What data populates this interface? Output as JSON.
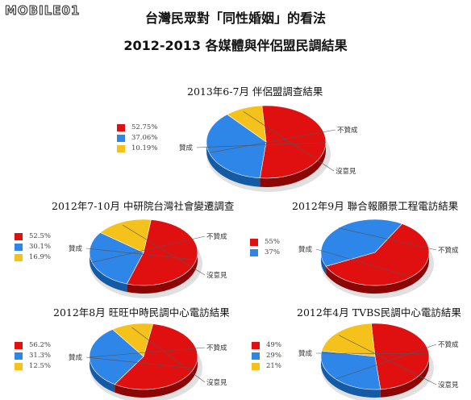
{
  "header": {
    "logo": "MOBILE01",
    "title": "台灣民眾對「同性婚姻」的看法",
    "subtitle": "2012-2013 各媒體與伴侶盟民調結果"
  },
  "colors": {
    "support": "#e01010",
    "oppose": "#2e86e8",
    "no_opinion": "#f5c21b"
  },
  "chart_data": [
    {
      "type": "pie",
      "title": "2013年6-7月 伴侶盟調查結果",
      "slices": [
        {
          "label": "贊成",
          "value": 52.75,
          "legend": "52.75%"
        },
        {
          "label": "不贊成",
          "value": 37.06,
          "legend": "37.06%"
        },
        {
          "label": "沒意見",
          "value": 10.19,
          "legend": "10.19%"
        }
      ],
      "legend_position": "left"
    },
    {
      "type": "pie",
      "title": "2012年7-10月 中研院台灣社會變遷調查",
      "slices": [
        {
          "label": "贊成",
          "value": 52.5,
          "legend": "52.5%"
        },
        {
          "label": "不贊成",
          "value": 30.1,
          "legend": "30.1%"
        },
        {
          "label": "沒意見",
          "value": 16.9,
          "legend": "16.9%"
        }
      ],
      "legend_position": "left"
    },
    {
      "type": "pie",
      "title": "2012年9月 聯合報願景工程電訪結果",
      "slices": [
        {
          "label": "贊成",
          "value": 55,
          "legend": "55%"
        },
        {
          "label": "不贊成",
          "value": 37,
          "legend": "37%"
        }
      ],
      "legend_position": "left"
    },
    {
      "type": "pie",
      "title": "2012年8月 旺旺中時民調中心電訪結果",
      "slices": [
        {
          "label": "贊成",
          "value": 56.2,
          "legend": "56.2%"
        },
        {
          "label": "不贊成",
          "value": 31.3,
          "legend": "31.3%"
        },
        {
          "label": "沒意見",
          "value": 12.5,
          "legend": "12.5%"
        }
      ],
      "legend_position": "left"
    },
    {
      "type": "pie",
      "title": "2012年4月 TVBS民調中心電訪結果",
      "slices": [
        {
          "label": "贊成",
          "value": 49,
          "legend": "49%"
        },
        {
          "label": "不贊成",
          "value": 29,
          "legend": "29%"
        },
        {
          "label": "沒意見",
          "value": 21,
          "legend": "21%"
        }
      ],
      "legend_position": "left"
    }
  ]
}
